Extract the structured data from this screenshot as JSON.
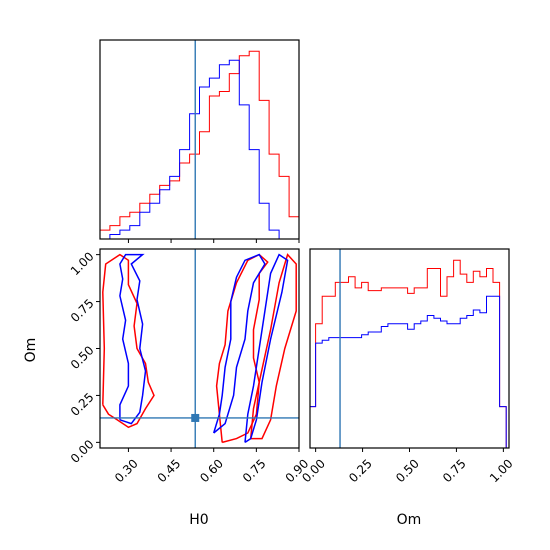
{
  "chart_data": {
    "type": "corner",
    "parameters": [
      "H0",
      "Om"
    ],
    "truth": {
      "H0": 0.535,
      "Om": 0.13
    },
    "colors": {
      "series_a": "#ff0000",
      "series_b": "#0000ff",
      "truth": "#2f77b4"
    },
    "panels": [
      {
        "id": "h0-marginal",
        "type": "histogram",
        "x_range": [
          0.2,
          0.9
        ],
        "bins": [
          0.2,
          0.235,
          0.27,
          0.305,
          0.34,
          0.375,
          0.41,
          0.445,
          0.48,
          0.515,
          0.55,
          0.585,
          0.62,
          0.655,
          0.69,
          0.725,
          0.76,
          0.795,
          0.83,
          0.865,
          0.9
        ],
        "series": [
          {
            "counts": [
              2,
              3,
              5,
              6,
              8,
              10,
              12,
              13,
              17,
              19,
              24,
              32,
              33,
              37,
              41,
              42,
              31,
              19,
              14,
              5
            ]
          },
          {
            "counts": [
              0,
              1,
              2,
              3,
              6,
              8,
              11,
              14,
              20,
              28,
              34,
              36,
              39,
              40,
              30,
              20,
              8,
              2,
              0,
              0
            ]
          }
        ]
      },
      {
        "id": "om-marginal",
        "type": "histogram",
        "x_range": [
          -0.03,
          1.03
        ],
        "bins": [
          -0.03,
          0.0,
          0.035,
          0.07,
          0.105,
          0.14,
          0.175,
          0.21,
          0.245,
          0.28,
          0.315,
          0.35,
          0.385,
          0.42,
          0.455,
          0.49,
          0.525,
          0.56,
          0.595,
          0.63,
          0.665,
          0.7,
          0.735,
          0.77,
          0.805,
          0.84,
          0.875,
          0.91,
          0.945,
          0.98,
          1.015
        ],
        "series": [
          {
            "counts": [
              15,
              45,
              55,
              55,
              60,
              60,
              62,
              58,
              60,
              57,
              57,
              58,
              58,
              58,
              58,
              56,
              58,
              58,
              65,
              65,
              55,
              62,
              68,
              63,
              60,
              64,
              62,
              65,
              60,
              15
            ]
          },
          {
            "counts": [
              15,
              38,
              39,
              40,
              40,
              40,
              40,
              40,
              41,
              42,
              42,
              44,
              45,
              45,
              45,
              43,
              45,
              46,
              48,
              47,
              46,
              45,
              45,
              47,
              48,
              50,
              49,
              55,
              55,
              15
            ]
          }
        ]
      },
      {
        "id": "h0-om-joint",
        "type": "contour",
        "x_range": [
          0.2,
          0.9
        ],
        "y_range": [
          -0.03,
          1.03
        ],
        "series": [
          {
            "contours": [
              [
                [
                  0.21,
                  0.2
                ],
                [
                  0.215,
                  0.5
                ],
                [
                  0.21,
                  0.8
                ],
                [
                  0.22,
                  0.95
                ],
                [
                  0.27,
                  1.0
                ],
                [
                  0.3,
                  0.97
                ],
                [
                  0.3,
                  0.84
                ],
                [
                  0.33,
                  0.74
                ],
                [
                  0.32,
                  0.62
                ],
                [
                  0.33,
                  0.5
                ],
                [
                  0.36,
                  0.42
                ],
                [
                  0.37,
                  0.32
                ],
                [
                  0.39,
                  0.25
                ],
                [
                  0.36,
                  0.18
                ],
                [
                  0.33,
                  0.1
                ],
                [
                  0.3,
                  0.08
                ],
                [
                  0.26,
                  0.12
                ],
                [
                  0.23,
                  0.15
                ],
                [
                  0.21,
                  0.2
                ]
              ],
              [
                [
                  0.63,
                  0.0
                ],
                [
                  0.62,
                  0.15
                ],
                [
                  0.61,
                  0.3
                ],
                [
                  0.62,
                  0.42
                ],
                [
                  0.64,
                  0.52
                ],
                [
                  0.65,
                  0.7
                ],
                [
                  0.68,
                  0.85
                ],
                [
                  0.72,
                  0.97
                ],
                [
                  0.76,
                  1.0
                ],
                [
                  0.79,
                  0.96
                ],
                [
                  0.76,
                  0.9
                ],
                [
                  0.76,
                  0.76
                ],
                [
                  0.74,
                  0.6
                ],
                [
                  0.74,
                  0.45
                ],
                [
                  0.76,
                  0.32
                ],
                [
                  0.75,
                  0.15
                ],
                [
                  0.72,
                  0.05
                ],
                [
                  0.68,
                  0.02
                ],
                [
                  0.63,
                  0.0
                ]
              ],
              [
                [
                  0.73,
                  0.02
                ],
                [
                  0.74,
                  0.18
                ],
                [
                  0.76,
                  0.32
                ],
                [
                  0.8,
                  0.6
                ],
                [
                  0.83,
                  0.85
                ],
                [
                  0.86,
                  1.0
                ],
                [
                  0.89,
                  0.95
                ],
                [
                  0.89,
                  0.7
                ],
                [
                  0.85,
                  0.5
                ],
                [
                  0.82,
                  0.3
                ],
                [
                  0.8,
                  0.12
                ],
                [
                  0.77,
                  0.02
                ],
                [
                  0.73,
                  0.02
                ]
              ]
            ]
          },
          {
            "contours": [
              [
                [
                  0.27,
                  0.12
                ],
                [
                  0.27,
                  0.2
                ],
                [
                  0.3,
                  0.3
                ],
                [
                  0.3,
                  0.42
                ],
                [
                  0.28,
                  0.55
                ],
                [
                  0.29,
                  0.65
                ],
                [
                  0.27,
                  0.78
                ],
                [
                  0.28,
                  0.87
                ],
                [
                  0.27,
                  0.95
                ],
                [
                  0.29,
                  1.0
                ],
                [
                  0.35,
                  1.0
                ],
                [
                  0.31,
                  0.95
                ],
                [
                  0.34,
                  0.86
                ],
                [
                  0.33,
                  0.76
                ],
                [
                  0.35,
                  0.63
                ],
                [
                  0.34,
                  0.5
                ],
                [
                  0.36,
                  0.38
                ],
                [
                  0.35,
                  0.25
                ],
                [
                  0.34,
                  0.16
                ],
                [
                  0.31,
                  0.1
                ],
                [
                  0.27,
                  0.12
                ]
              ],
              [
                [
                  0.6,
                  0.05
                ],
                [
                  0.62,
                  0.15
                ],
                [
                  0.63,
                  0.25
                ],
                [
                  0.64,
                  0.4
                ],
                [
                  0.66,
                  0.55
                ],
                [
                  0.66,
                  0.75
                ],
                [
                  0.68,
                  0.88
                ],
                [
                  0.71,
                  0.97
                ],
                [
                  0.76,
                  1.0
                ],
                [
                  0.78,
                  0.95
                ],
                [
                  0.74,
                  0.85
                ],
                [
                  0.72,
                  0.7
                ],
                [
                  0.71,
                  0.55
                ],
                [
                  0.68,
                  0.4
                ],
                [
                  0.67,
                  0.25
                ],
                [
                  0.64,
                  0.1
                ],
                [
                  0.6,
                  0.05
                ]
              ],
              [
                [
                  0.71,
                  0.0
                ],
                [
                  0.72,
                  0.15
                ],
                [
                  0.74,
                  0.3
                ],
                [
                  0.76,
                  0.5
                ],
                [
                  0.78,
                  0.7
                ],
                [
                  0.8,
                  0.9
                ],
                [
                  0.83,
                  1.0
                ],
                [
                  0.86,
                  0.97
                ],
                [
                  0.84,
                  0.8
                ],
                [
                  0.8,
                  0.55
                ],
                [
                  0.77,
                  0.32
                ],
                [
                  0.75,
                  0.12
                ],
                [
                  0.73,
                  0.02
                ],
                [
                  0.71,
                  0.0
                ]
              ]
            ]
          }
        ]
      }
    ],
    "axes": {
      "h0_x_ticks": [
        "0.30",
        "0.45",
        "0.60",
        "0.75",
        "0.90"
      ],
      "om_y_ticks": [
        "0.00",
        "0.25",
        "0.50",
        "0.75",
        "1.00"
      ],
      "om_x_ticks": [
        "0.00",
        "0.25",
        "0.50",
        "0.75",
        "1.00"
      ],
      "xlabel_left": "H0",
      "ylabel_left": "Om",
      "xlabel_right": "Om"
    }
  }
}
